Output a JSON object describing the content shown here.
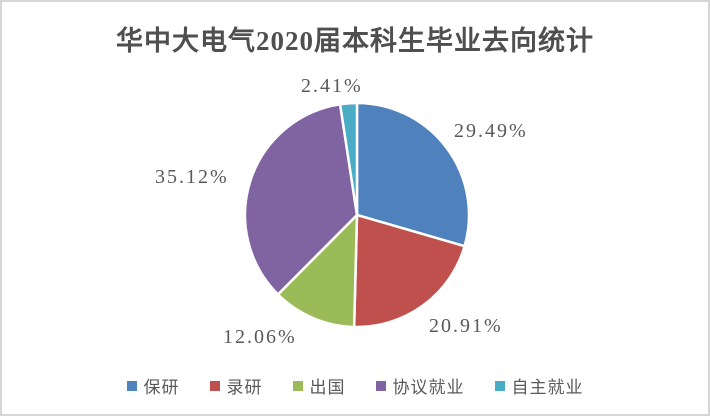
{
  "chart_data": {
    "type": "pie",
    "title": "华中大电气2020届本科生毕业去向统计",
    "categories": [
      "保研",
      "录研",
      "出国",
      "协议就业",
      "自主就业"
    ],
    "values": [
      29.49,
      20.91,
      12.06,
      35.12,
      2.41
    ],
    "labels": [
      "29.49%",
      "20.91%",
      "12.06%",
      "35.12%",
      "2.41%"
    ],
    "colors": [
      "#4F81BD",
      "#C0504D",
      "#9BBB59",
      "#8064A2",
      "#4BACC6"
    ],
    "unit": "%",
    "start_angle_deg": 0,
    "direction": "clockwise",
    "legend_position": "bottom",
    "slice_border_color": "#FFFFFF",
    "title_color": "#4F4F4F",
    "label_color": "#595959",
    "canvas_border_color": "#D6D6D6"
  }
}
